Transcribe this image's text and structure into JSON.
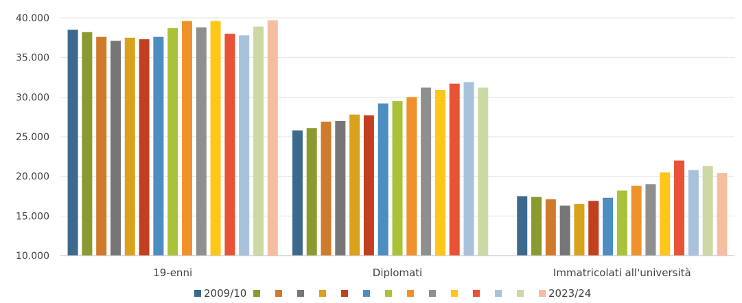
{
  "chart_data": {
    "type": "bar",
    "categories": [
      "19-enni",
      "Diplomati",
      "Immatricolati all'università"
    ],
    "ylim": [
      10000,
      40000
    ],
    "yticks": [
      "10.000",
      "15.000",
      "20.000",
      "25.000",
      "30.000",
      "35.000",
      "40.000"
    ],
    "grid": true,
    "legend_position": "bottom",
    "series": [
      {
        "name": "2009/10",
        "color": "#3D6A8C",
        "values": [
          38500,
          25800,
          17500
        ]
      },
      {
        "name": "",
        "color": "#8A9A2E",
        "values": [
          38200,
          26100,
          17400
        ]
      },
      {
        "name": "",
        "color": "#D07A2C",
        "values": [
          37600,
          26900,
          17100
        ]
      },
      {
        "name": "",
        "color": "#767676",
        "values": [
          37100,
          27000,
          16300
        ]
      },
      {
        "name": "",
        "color": "#D9A21C",
        "values": [
          37500,
          27800,
          16500
        ]
      },
      {
        "name": "",
        "color": "#C0401F",
        "values": [
          37300,
          27700,
          16900
        ]
      },
      {
        "name": "",
        "color": "#4C8DC2",
        "values": [
          37600,
          29200,
          17300
        ]
      },
      {
        "name": "",
        "color": "#A9C23A",
        "values": [
          38700,
          29500,
          18200
        ]
      },
      {
        "name": "",
        "color": "#F0922B",
        "values": [
          39600,
          30000,
          18800
        ]
      },
      {
        "name": "",
        "color": "#8F8F8F",
        "values": [
          38800,
          31200,
          19000
        ]
      },
      {
        "name": "",
        "color": "#FFC61A",
        "values": [
          39600,
          30900,
          20500
        ]
      },
      {
        "name": "",
        "color": "#E85236",
        "values": [
          38000,
          31700,
          22000
        ]
      },
      {
        "name": "",
        "color": "#A9C2DB",
        "values": [
          37800,
          31900,
          20800
        ]
      },
      {
        "name": "",
        "color": "#CDD9A4",
        "values": [
          38900,
          31200,
          21300
        ]
      },
      {
        "name": "2023/24",
        "color": "#F6BEA0",
        "values": [
          39700,
          null,
          20400
        ]
      }
    ]
  }
}
